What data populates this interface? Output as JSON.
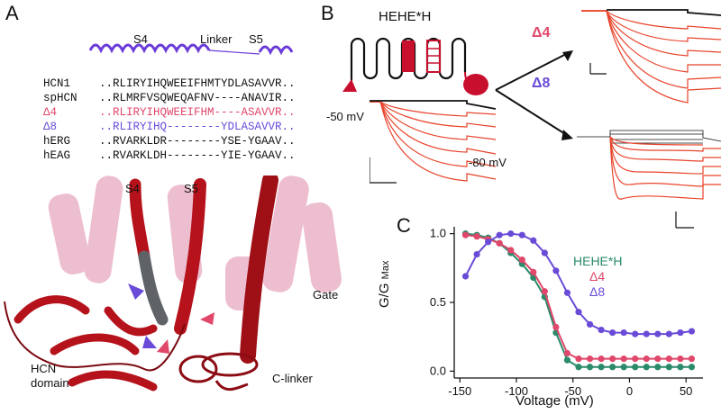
{
  "panels": {
    "a": "A",
    "b": "B",
    "c": "C"
  },
  "alignment": {
    "header": {
      "s4": "S4",
      "linker": "Linker",
      "s5": "S5"
    },
    "rows": [
      {
        "name": "HCN1",
        "seq": "..RLIRYIHQWEEIFHMTYDLASAVVR..",
        "color": "#111111"
      },
      {
        "name": "spHCN",
        "seq": "..RLMRFVSQWEQAFNV----ANAVIR..",
        "color": "#111111"
      },
      {
        "name": "Δ4",
        "seq": "..RLIRYIHQWEEIFHM----ASAVVR..",
        "color": "#e0476a"
      },
      {
        "name": "Δ8",
        "seq": "..RLIRYIHQ--------YDLASAVVR..",
        "color": "#6a4bd8"
      },
      {
        "name": "hERG",
        "seq": "..RVARKLDR--------YSE-YGAAV..",
        "color": "#111111"
      },
      {
        "name": "hEAG",
        "seq": "..RVARKLDH--------YIE-YGAAV..",
        "color": "#111111"
      }
    ]
  },
  "structure": {
    "s4": "S4",
    "s5": "S5",
    "gate": "Gate",
    "hcn_domain_line1": "HCN",
    "hcn_domain_line2": "domain",
    "c_linker": "C-linker"
  },
  "traces": {
    "construct": "HEHE*H",
    "hold": "-50 mV",
    "tail": "-80 mV",
    "d4": "Δ4",
    "d8": "Δ8"
  },
  "colors": {
    "pink": "#e0476a",
    "purple": "#6a4bd8",
    "green": "#2a8a6a",
    "red": "#c8102e",
    "trace": "#e8432a"
  },
  "chart_data": {
    "type": "scatter",
    "xlabel": "Voltage (mV)",
    "ylabel": "G/G",
    "ylabel_sub": "Max",
    "xlim": [
      -155,
      65
    ],
    "ylim": [
      -0.05,
      1.05
    ],
    "xticks": [
      -150,
      -100,
      -50,
      0,
      50
    ],
    "xtick_labels": [
      "-150",
      "-100",
      "-50",
      "0",
      "50"
    ],
    "yticks": [
      0.0,
      0.5,
      1.0
    ],
    "ytick_labels": [
      "0.0",
      "0.5",
      "1.0"
    ],
    "x": [
      -145,
      -135,
      -125,
      -115,
      -105,
      -95,
      -85,
      -75,
      -65,
      -55,
      -45,
      -35,
      -25,
      -15,
      -5,
      5,
      15,
      25,
      35,
      45,
      55
    ],
    "series": [
      {
        "name": "HEHE*H",
        "color": "#2a8a6a",
        "values": [
          1.0,
          0.99,
          0.97,
          0.93,
          0.86,
          0.78,
          0.68,
          0.54,
          0.28,
          0.08,
          0.03,
          0.03,
          0.03,
          0.03,
          0.03,
          0.03,
          0.03,
          0.03,
          0.03,
          0.03,
          0.03
        ]
      },
      {
        "name": "Δ4",
        "color": "#e0476a",
        "values": [
          0.99,
          0.98,
          0.96,
          0.93,
          0.88,
          0.81,
          0.72,
          0.58,
          0.32,
          0.13,
          0.09,
          0.09,
          0.09,
          0.09,
          0.09,
          0.09,
          0.09,
          0.09,
          0.09,
          0.09,
          0.09
        ]
      },
      {
        "name": "Δ8",
        "color": "#6a4bd8",
        "values": [
          0.69,
          0.85,
          0.94,
          0.99,
          1.0,
          0.99,
          0.95,
          0.86,
          0.73,
          0.57,
          0.43,
          0.34,
          0.3,
          0.28,
          0.28,
          0.27,
          0.27,
          0.27,
          0.27,
          0.28,
          0.29
        ]
      }
    ],
    "legend": [
      "HEHE*H",
      "Δ4",
      "Δ8"
    ],
    "legend_position": "top-right"
  }
}
